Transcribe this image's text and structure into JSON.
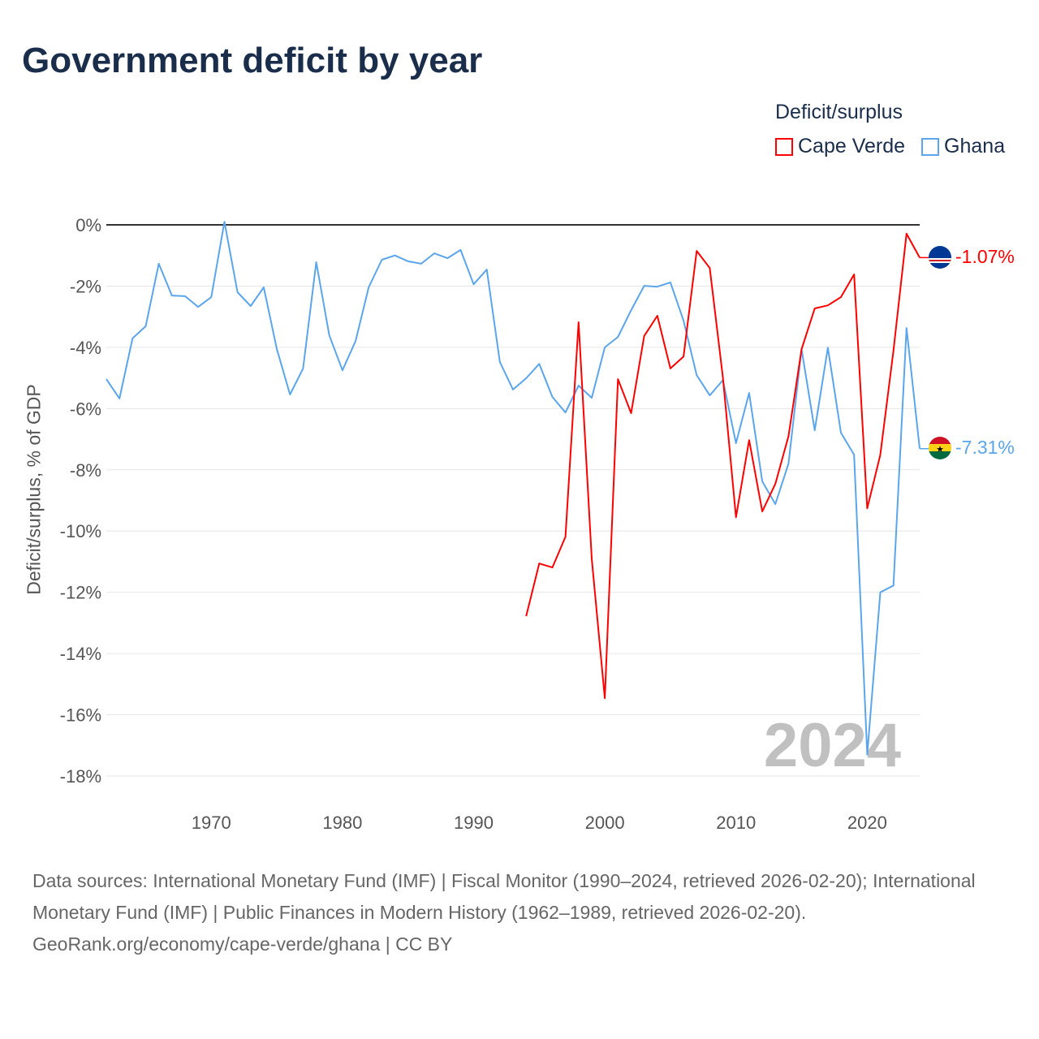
{
  "title": "Government deficit by year",
  "legend": {
    "title": "Deficit/surplus",
    "items": [
      {
        "name": "Cape Verde",
        "color": "#ff0000"
      },
      {
        "name": "Ghana",
        "color": "#5aa5ec"
      }
    ]
  },
  "year_watermark": "2024",
  "end_labels": {
    "cape_verde": "-1.07%",
    "ghana": "-7.31%"
  },
  "footer": {
    "sources": "Data sources: International Monetary Fund (IMF) | Fiscal Monitor (1990–2024, retrieved 2026-02-20); International Monetary Fund (IMF) | Public Finances in Modern History (1962–1989, retrieved 2026-02-20).",
    "credit": "GeoRank.org/economy/cape-verde/ghana | CC BY"
  },
  "chart_data": {
    "type": "line",
    "title": "Government deficit by year",
    "xlabel": "",
    "ylabel": "Deficit/surplus, % of GDP",
    "xlim": [
      1962,
      2024
    ],
    "ylim": [
      -18,
      0
    ],
    "x_ticks": [
      1970,
      1980,
      1990,
      2000,
      2010,
      2020
    ],
    "x_tick_labels": [
      "1970",
      "1980",
      "1990",
      "2000",
      "2010",
      "2020"
    ],
    "y_ticks": [
      0,
      -2,
      -4,
      -6,
      -8,
      -10,
      -12,
      -14,
      -16,
      -18
    ],
    "y_tick_labels": [
      "0%",
      "-2%",
      "-4%",
      "-6%",
      "-8%",
      "-10%",
      "-12%",
      "-14%",
      "-16%",
      "-18%"
    ],
    "grid": true,
    "legend_position": "top-right",
    "series": [
      {
        "name": "Cape Verde",
        "color": "#ff0000",
        "start_year": 1994,
        "values": [
          -12.78,
          -11.06,
          -11.19,
          -10.19,
          -3.18,
          -10.9,
          -15.46,
          -5.04,
          -6.15,
          -3.63,
          -2.97,
          -4.69,
          -4.3,
          -0.85,
          -1.41,
          -4.99,
          -9.55,
          -7.03,
          -9.36,
          -8.46,
          -6.9,
          -4.06,
          -2.73,
          -2.63,
          -2.36,
          -1.62,
          -9.26,
          -7.51,
          -4.11,
          -0.29,
          -1.07
        ]
      },
      {
        "name": "Ghana",
        "color": "#5aa5ec",
        "start_year": 1962,
        "values": [
          -5.04,
          -5.67,
          -3.71,
          -3.31,
          -1.27,
          -2.31,
          -2.33,
          -2.68,
          -2.36,
          0.1,
          -2.2,
          -2.65,
          -2.04,
          -4.06,
          -5.54,
          -4.69,
          -1.22,
          -3.61,
          -4.75,
          -3.79,
          -2.04,
          -1.14,
          -1.0,
          -1.19,
          -1.27,
          -0.93,
          -1.09,
          -0.82,
          -1.94,
          -1.46,
          -4.48,
          -5.38,
          -5.01,
          -4.54,
          -5.62,
          -6.13,
          -5.25,
          -5.65,
          -4.0,
          -3.66,
          -2.79,
          -1.99,
          -2.02,
          -1.88,
          -3.13,
          -4.91,
          -5.57,
          -5.07,
          -7.13,
          -5.49,
          -8.38,
          -9.12,
          -7.8,
          -4.06,
          -6.71,
          -4.01,
          -6.79,
          -7.51,
          -17.3,
          -12.0,
          -11.78,
          -3.37,
          -7.31
        ]
      }
    ]
  }
}
